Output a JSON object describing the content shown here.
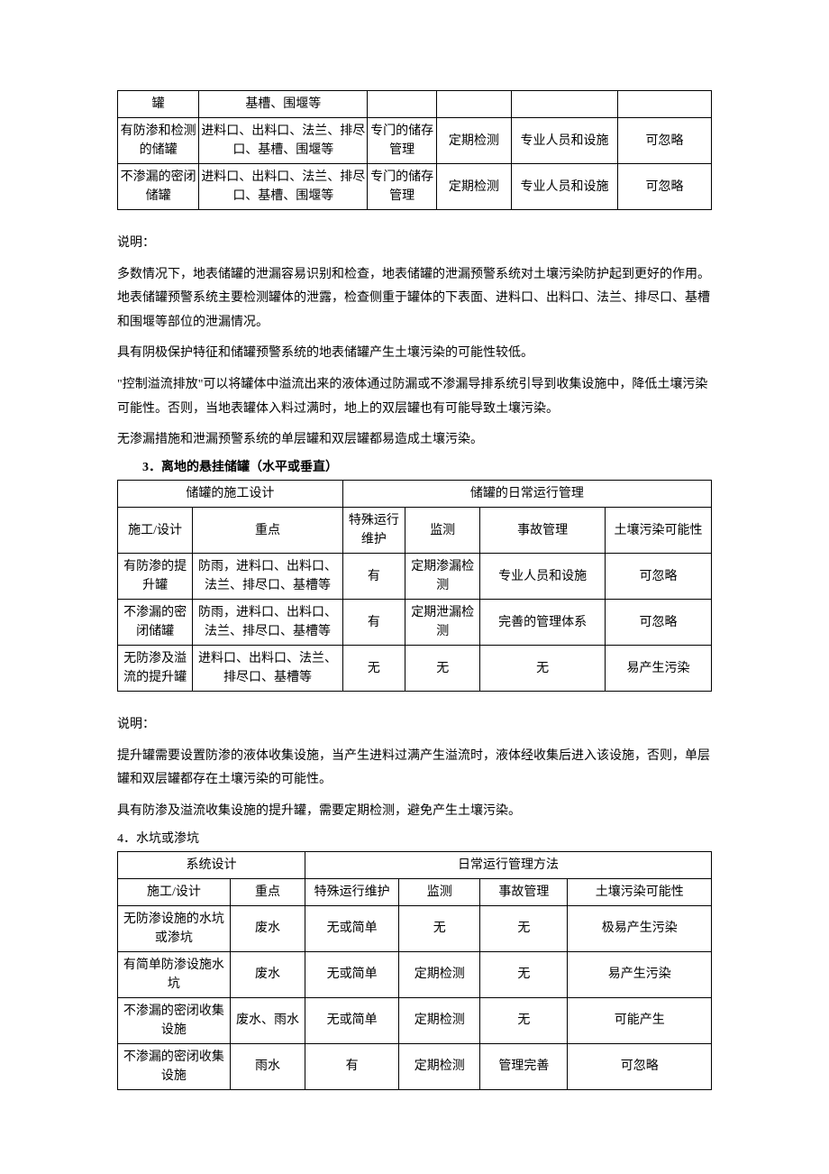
{
  "table1": {
    "col_widths": [
      "13%",
      "27%",
      "11%",
      "12%",
      "17%",
      "15%"
    ],
    "rows": [
      [
        "罐",
        "基槽、围堰等",
        "",
        "",
        "",
        ""
      ],
      [
        "有防渗和检测的储罐",
        "进料口、出料口、法兰、排尽口、基槽、围堰等",
        "专门的储存管理",
        "定期检测",
        "专业人员和设施",
        "可忽略"
      ],
      [
        "不渗漏的密闭储罐",
        "进料口、出料口、法兰、排尽口、基槽、围堰等",
        "专门的储存管理",
        "定期检测",
        "专业人员和设施",
        "可忽略"
      ]
    ]
  },
  "explain1_label": "说明：",
  "explain1_paras": [
    "多数情况下，地表储罐的泄漏容易识别和检查，地表储罐的泄漏预警系统对土壤污染防护起到更好的作用。地表储罐预警系统主要检测罐体的泄露，检查侧重于罐体的下表面、进料口、出料口、法兰、排尽口、基槽和围堰等部位的泄漏情况。",
    "具有阴极保护特征和储罐预警系统的地表储罐产生土壤污染的可能性较低。",
    "\"控制溢流排放\"可以将罐体中溢流出来的液体通过防漏或不渗漏导排系统引导到收集设施中，降低土壤污染可能性。否则，当地表罐体入料过满时，地上的双层罐也有可能导致土壤污染。",
    "无渗漏措施和泄漏预警系统的单层罐和双层罐都易造成土壤污染。"
  ],
  "heading3": "3．离地的悬挂储罐（水平或垂直）",
  "table2": {
    "col_widths": [
      "12%",
      "24%",
      "10%",
      "12%",
      "20%",
      "17%"
    ],
    "header1": [
      "储罐的施工设计",
      "储罐的日常运行管理"
    ],
    "header2": [
      "施工/设计",
      "重点",
      "特殊运行维护",
      "监测",
      "事故管理",
      "土壤污染可能性"
    ],
    "rows": [
      [
        "有防渗的提升罐",
        "防雨，进料口、出料口、法兰、排尽口、基槽等",
        "有",
        "定期渗漏检测",
        "专业人员和设施",
        "可忽略"
      ],
      [
        "不渗漏的密闭储罐",
        "防雨，进料口、出料口、法兰、排尽口、基槽等",
        "有",
        "定期泄漏检测",
        "完善的管理体系",
        "可忽略"
      ],
      [
        "无防渗及溢流的提升罐",
        "进料口、出料口、法兰、排尽口、基槽等",
        "无",
        "无",
        "无",
        "易产生污染"
      ]
    ]
  },
  "explain2_label": "说明：",
  "explain2_paras": [
    "提升罐需要设置防渗的液体收集设施，当产生进料过满产生溢流时，液体经收集后进入该设施，否则，单层罐和双层罐都存在土壤污染的可能性。",
    "具有防渗及溢流收集设施的提升罐，需要定期检测，避免产生土壤污染。"
  ],
  "heading4": "4．水坑或渗坑",
  "table3": {
    "col_widths": [
      "18%",
      "12%",
      "15%",
      "13%",
      "14%",
      "23%"
    ],
    "header1": [
      "系统设计",
      "日常运行管理方法"
    ],
    "header2": [
      "施工/设计",
      "重点",
      "特殊运行维护",
      "监测",
      "事故管理",
      "土壤污染可能性"
    ],
    "rows": [
      [
        "无防渗设施的水坑或渗坑",
        "废水",
        "无或简单",
        "无",
        "无",
        "极易产生污染"
      ],
      [
        "有简单防渗设施水坑",
        "废水",
        "无或简单",
        "定期检测",
        "无",
        "易产生污染"
      ],
      [
        "不渗漏的密闭收集设施",
        "废水、雨水",
        "无或简单",
        "定期检测",
        "无",
        "可能产生"
      ],
      [
        "不渗漏的密闭收集设施",
        "雨水",
        "有",
        "定期检测",
        "管理完善",
        "可忽略"
      ]
    ]
  }
}
